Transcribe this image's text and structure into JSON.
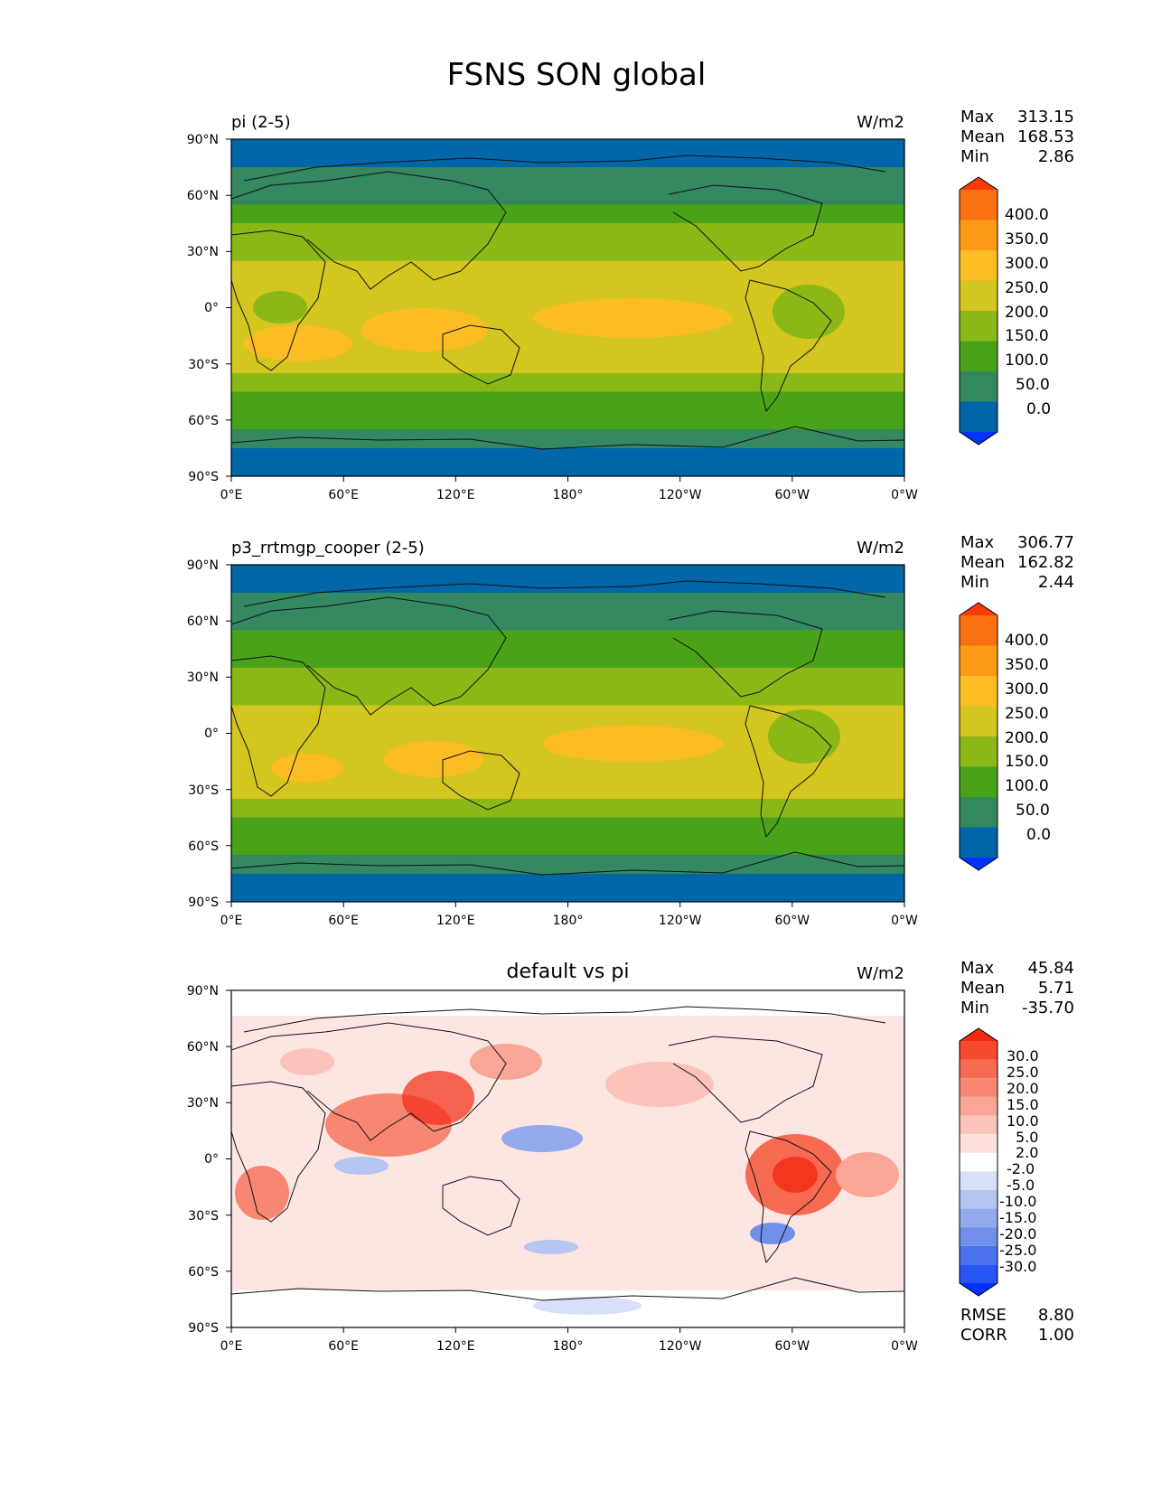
{
  "figure": {
    "title": "FSNS SON global"
  },
  "axes": {
    "lat_ticks": [
      "90°N",
      "60°N",
      "30°N",
      "0°",
      "30°S",
      "60°S",
      "90°S"
    ],
    "lon_ticks": [
      "0°E",
      "60°E",
      "120°E",
      "180°",
      "120°W",
      "60°W",
      "0°W"
    ]
  },
  "panels": [
    {
      "left_title": "pi (2-5)",
      "center_title": "",
      "units": "W/m2",
      "stats_labels": [
        "Max",
        "Mean",
        "Min"
      ],
      "stats_values": [
        "313.15",
        "168.53",
        "2.86"
      ],
      "colorbar": {
        "labels": [
          "400.0",
          "350.0",
          "300.0",
          "250.0",
          "200.0",
          "150.0",
          "100.0",
          "50.0",
          "0.0"
        ],
        "colors": [
          "#0033ff",
          "#0066a8",
          "#33885f",
          "#4aa219",
          "#8cb817",
          "#d3c61f",
          "#fbbd23",
          "#fb9a16",
          "#f9700f",
          "#f93a0c"
        ]
      }
    },
    {
      "left_title": "p3_rrtmgp_cooper (2-5)",
      "center_title": "",
      "units": "W/m2",
      "stats_labels": [
        "Max",
        "Mean",
        "Min"
      ],
      "stats_values": [
        "306.77",
        "162.82",
        "2.44"
      ],
      "colorbar": {
        "labels": [
          "400.0",
          "350.0",
          "300.0",
          "250.0",
          "200.0",
          "150.0",
          "100.0",
          "50.0",
          "0.0"
        ],
        "colors": [
          "#0033ff",
          "#0066a8",
          "#33885f",
          "#4aa219",
          "#8cb817",
          "#d3c61f",
          "#fbbd23",
          "#fb9a16",
          "#f9700f",
          "#f93a0c"
        ]
      }
    },
    {
      "left_title": "",
      "center_title": "default vs pi",
      "units": "W/m2",
      "stats_labels": [
        "Max",
        "Mean",
        "Min"
      ],
      "stats_values": [
        "45.84",
        "5.71",
        "-35.70"
      ],
      "colorbar": {
        "labels": [
          "30.0",
          "25.0",
          "20.0",
          "15.0",
          "10.0",
          "5.0",
          "2.0",
          "-2.0",
          "-5.0",
          "-10.0",
          "-15.0",
          "-20.0",
          "-25.0",
          "-30.0"
        ],
        "colors": [
          "#0033ff",
          "#2a55f5",
          "#4d72ee",
          "#6f8fe8",
          "#93a9ec",
          "#b6c5f2",
          "#d8e0f9",
          "#ffffff",
          "#fde0dc",
          "#fbc3b9",
          "#f9a696",
          "#f78773",
          "#f56a51",
          "#f34a30",
          "#f12a12"
        ]
      },
      "extra_labels": [
        "RMSE",
        "CORR"
      ],
      "extra_values": [
        "8.80",
        "1.00"
      ]
    }
  ],
  "chart_data": [
    {
      "type": "heatmap",
      "title": "pi (2-5)",
      "units": "W/m2",
      "xlabel": "",
      "ylabel": "",
      "xlim": [
        0,
        360
      ],
      "ylim": [
        -90,
        90
      ],
      "x_ticks": [
        "0°E",
        "60°E",
        "120°E",
        "180°",
        "120°W",
        "60°W",
        "0°W"
      ],
      "y_ticks": [
        "90°N",
        "60°N",
        "30°N",
        "0°",
        "30°S",
        "60°S",
        "90°S"
      ],
      "stats": {
        "Max": 313.15,
        "Mean": 168.53,
        "Min": 2.86
      },
      "levels": [
        0,
        50,
        100,
        150,
        200,
        250,
        300,
        350,
        400
      ],
      "zonal_profile": {
        "lat": [
          -90,
          -75,
          -65,
          -55,
          -45,
          -35,
          -25,
          -15,
          -5,
          5,
          15,
          25,
          35,
          45,
          55,
          65,
          75,
          90
        ],
        "value": [
          25,
          25,
          85,
          135,
          160,
          210,
          245,
          240,
          225,
          215,
          210,
          195,
          170,
          140,
          105,
          70,
          35,
          25
        ]
      }
    },
    {
      "type": "heatmap",
      "title": "p3_rrtmgp_cooper (2-5)",
      "units": "W/m2",
      "xlabel": "",
      "ylabel": "",
      "xlim": [
        0,
        360
      ],
      "ylim": [
        -90,
        90
      ],
      "x_ticks": [
        "0°E",
        "60°E",
        "120°E",
        "180°",
        "120°W",
        "60°W",
        "0°W"
      ],
      "y_ticks": [
        "90°N",
        "60°N",
        "30°N",
        "0°",
        "30°S",
        "60°S",
        "90°S"
      ],
      "stats": {
        "Max": 306.77,
        "Mean": 162.82,
        "Min": 2.44
      },
      "levels": [
        0,
        50,
        100,
        150,
        200,
        250,
        300,
        350,
        400
      ],
      "zonal_profile": {
        "lat": [
          -90,
          -75,
          -65,
          -55,
          -45,
          -35,
          -25,
          -15,
          -5,
          5,
          15,
          25,
          35,
          45,
          55,
          65,
          75,
          90
        ],
        "value": [
          25,
          25,
          80,
          130,
          155,
          205,
          240,
          235,
          220,
          205,
          195,
          180,
          160,
          130,
          100,
          65,
          35,
          25
        ]
      }
    },
    {
      "type": "heatmap",
      "title": "default vs pi",
      "units": "W/m2",
      "xlabel": "",
      "ylabel": "",
      "xlim": [
        0,
        360
      ],
      "ylim": [
        -90,
        90
      ],
      "x_ticks": [
        "0°E",
        "60°E",
        "120°E",
        "180°",
        "120°W",
        "60°W",
        "0°W"
      ],
      "y_ticks": [
        "90°N",
        "60°N",
        "30°N",
        "0°",
        "30°S",
        "60°S",
        "90°S"
      ],
      "stats": {
        "Max": 45.84,
        "Mean": 5.71,
        "Min": -35.7,
        "RMSE": 8.8,
        "CORR": 1.0
      },
      "levels": [
        -30,
        -25,
        -20,
        -15,
        -10,
        -5,
        -2,
        2,
        5,
        10,
        15,
        20,
        25,
        30
      ]
    }
  ]
}
